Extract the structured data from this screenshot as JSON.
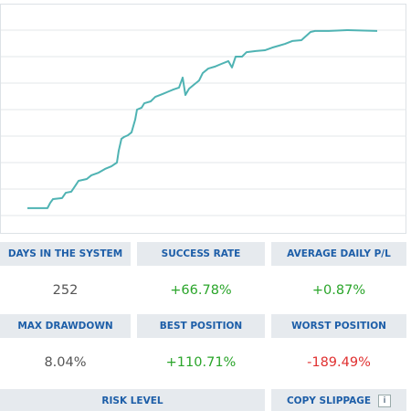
{
  "chart_data": {
    "type": "line",
    "color": "#4fb3b3",
    "grid": true,
    "xlim": [
      0,
      445
    ],
    "ylim": [
      0,
      7
    ],
    "yticks": [
      0,
      1,
      2,
      3,
      4,
      5,
      6,
      7
    ],
    "x": [
      30,
      52,
      55,
      58,
      68,
      72,
      78,
      82,
      86,
      95,
      100,
      108,
      115,
      122,
      128,
      130,
      133,
      136,
      140,
      144,
      148,
      150,
      155,
      158,
      165,
      170,
      178,
      185,
      190,
      196,
      200,
      203,
      207,
      212,
      218,
      222,
      228,
      235,
      242,
      250,
      254,
      258,
      265,
      270,
      280,
      290,
      298,
      305,
      312,
      320,
      330,
      340,
      345,
      360,
      380,
      413
    ],
    "values": [
      0.28,
      0.28,
      0.48,
      0.62,
      0.66,
      0.86,
      0.9,
      1.1,
      1.31,
      1.38,
      1.52,
      1.62,
      1.76,
      1.86,
      2.0,
      2.45,
      2.9,
      2.97,
      3.03,
      3.14,
      3.62,
      4.0,
      4.07,
      4.24,
      4.31,
      4.48,
      4.59,
      4.69,
      4.76,
      4.83,
      5.21,
      4.55,
      4.79,
      4.93,
      5.1,
      5.38,
      5.55,
      5.62,
      5.72,
      5.83,
      5.59,
      6.0,
      6.0,
      6.17,
      6.21,
      6.24,
      6.34,
      6.41,
      6.48,
      6.59,
      6.62,
      6.93,
      6.97,
      6.97,
      7.0,
      6.97
    ]
  },
  "stats": {
    "row1": [
      {
        "label": "DAYS IN THE SYSTEM",
        "value": "252"
      },
      {
        "label": "SUCCESS RATE",
        "value": "+66.78%"
      },
      {
        "label": "AVERAGE DAILY P/L",
        "value": "+0.87%"
      }
    ],
    "row2": [
      {
        "label": "MAX DRAWDOWN",
        "value": "8.04%"
      },
      {
        "label": "BEST POSITION",
        "value": "+110.71%"
      },
      {
        "label": "WORST POSITION",
        "value": "-189.49%"
      }
    ],
    "risk": "RISK LEVEL",
    "slippage": "COPY SLIPPAGE"
  }
}
